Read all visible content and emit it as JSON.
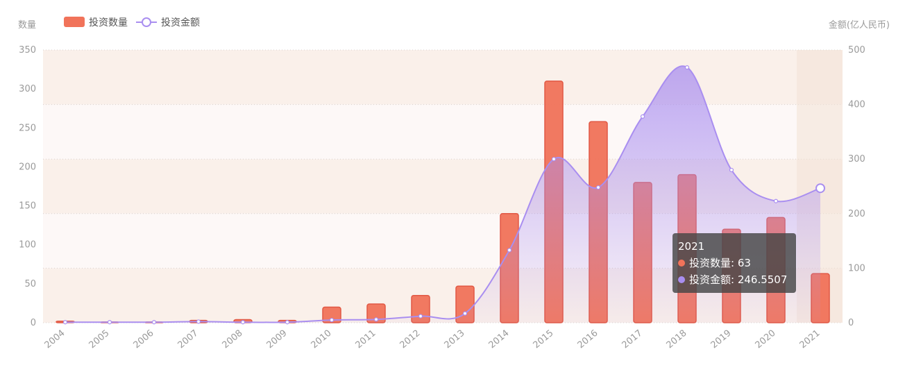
{
  "chart_data": {
    "type": "bar",
    "categories": [
      "2004",
      "2005",
      "2006",
      "2007",
      "2008",
      "2009",
      "2010",
      "2011",
      "2012",
      "2013",
      "2014",
      "2015",
      "2016",
      "2017",
      "2018",
      "2019",
      "2020",
      "2021"
    ],
    "series": [
      {
        "name": "投资数量",
        "type": "bar",
        "axis": "left",
        "color": "#f1735a",
        "values": [
          2,
          1,
          1,
          3,
          4,
          3,
          20,
          24,
          35,
          47,
          140,
          310,
          258,
          180,
          190,
          120,
          135,
          63
        ]
      },
      {
        "name": "投资金额",
        "type": "line",
        "axis": "right",
        "color": "#a98ef0",
        "values": [
          1,
          1,
          1,
          2,
          1,
          1,
          5,
          6,
          12,
          17,
          133,
          300,
          248,
          378,
          468,
          280,
          223,
          246.5507
        ]
      }
    ],
    "ylabel_left": "数量",
    "ylabel_right": "金额(亿人民币)",
    "ylim_left": [
      0,
      350
    ],
    "ylim_right": [
      0,
      500
    ],
    "yticks_left": [
      0,
      50,
      100,
      150,
      200,
      250,
      300,
      350
    ],
    "yticks_right": [
      0,
      100,
      200,
      300,
      400,
      500
    ],
    "legend_position": "top-left",
    "tooltip": {
      "category": "2021",
      "rows": [
        {
          "label": "投资数量: 63",
          "color": "#f1735a"
        },
        {
          "label": "投资金额: 246.5507",
          "color": "#a98ef0"
        }
      ]
    }
  }
}
